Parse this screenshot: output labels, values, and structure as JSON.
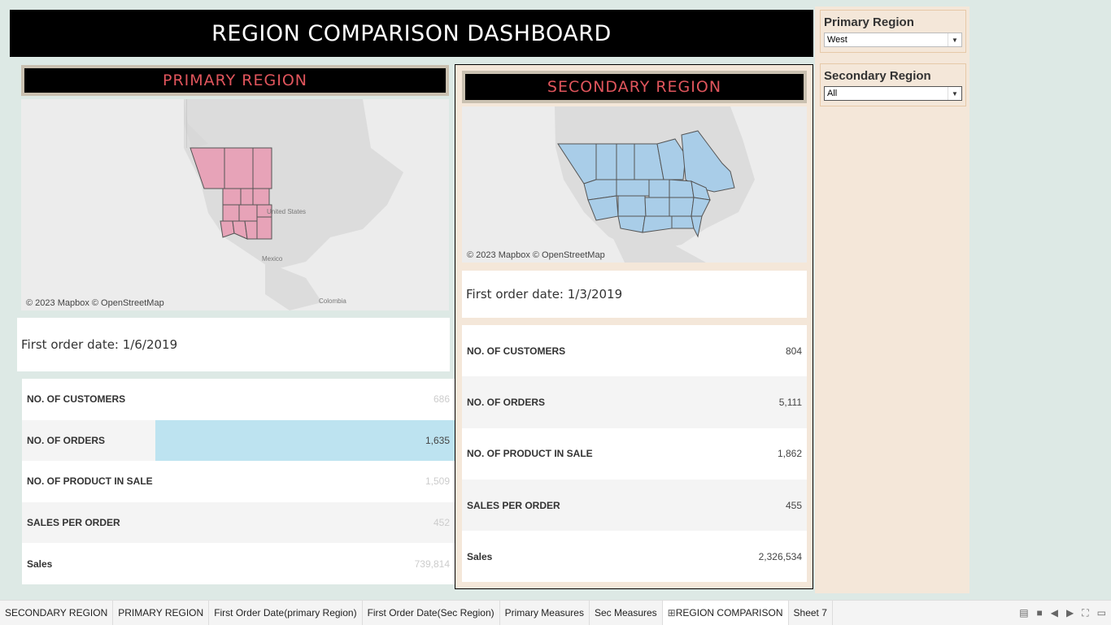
{
  "dashboard": {
    "title": "REGION COMPARISON DASHBOARD"
  },
  "primary": {
    "header": "PRIMARY REGION",
    "map_credit": "© 2023 Mapbox © OpenStreetMap",
    "map_labels": {
      "us": "United States",
      "mexico": "Mexico",
      "colombia": "Colombia"
    },
    "map_fill": "#e7a3b8",
    "first_order": "First order date: 1/6/2019",
    "metrics": [
      {
        "label": "NO. OF CUSTOMERS",
        "value": "686"
      },
      {
        "label": "NO. OF ORDERS",
        "value": "1,635"
      },
      {
        "label": "NO. OF PRODUCT IN SALE",
        "value": "1,509"
      },
      {
        "label": "SALES PER ORDER",
        "value": "452"
      },
      {
        "label": "Sales",
        "value": "739,814"
      }
    ],
    "highlight_color": "#bde3f0"
  },
  "secondary": {
    "header": "SECONDARY  REGION",
    "map_credit": "© 2023 Mapbox © OpenStreetMap",
    "map_fill": "#a9cde8",
    "first_order": "First order date: 1/3/2019",
    "metrics": [
      {
        "label": "NO. OF CUSTOMERS",
        "value": "804"
      },
      {
        "label": "NO. OF ORDERS",
        "value": "5,111"
      },
      {
        "label": "NO. OF PRODUCT IN SALE",
        "value": "1,862"
      },
      {
        "label": "SALES PER ORDER",
        "value": "455"
      },
      {
        "label": "Sales",
        "value": "2,326,534"
      }
    ]
  },
  "filters": {
    "primary": {
      "title": "Primary Region",
      "value": "West"
    },
    "secondary": {
      "title": "Secondary Region",
      "value": "All"
    }
  },
  "tabs": [
    "SECONDARY  REGION",
    "PRIMARY REGION",
    "First Order Date(primary Region)",
    "First Order Date(Sec Region)",
    "Primary Measures",
    "Sec Measures",
    "REGION COMPARISON",
    "Sheet 7"
  ],
  "active_tab": "REGION COMPARISON",
  "colors": {
    "accent_red": "#e0555c",
    "panel": "#f4e7d9",
    "background": "#dde9e5"
  }
}
